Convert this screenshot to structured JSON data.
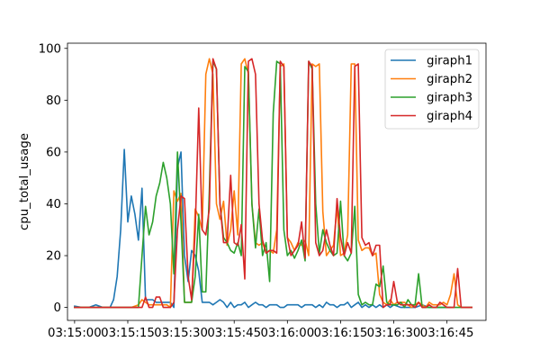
{
  "chart_data": {
    "type": "line",
    "xlabel": "",
    "ylabel": "cpu_total_usage",
    "x_unit": "seconds_after_03:15:00",
    "xlim": [
      -2,
      116
    ],
    "ylim": [
      -5,
      102
    ],
    "grid": false,
    "legend_position": "top-right",
    "x_ticks": [
      {
        "value": 0,
        "label": "03:15:00"
      },
      {
        "value": 15,
        "label": "03:15:15"
      },
      {
        "value": 30,
        "label": "03:15:30"
      },
      {
        "value": 45,
        "label": "03:15:45"
      },
      {
        "value": 60,
        "label": "03:16:00"
      },
      {
        "value": 75,
        "label": "03:16:15"
      },
      {
        "value": 90,
        "label": "03:16:30"
      },
      {
        "value": 105,
        "label": "03:16:45"
      }
    ],
    "y_ticks": [
      0,
      20,
      40,
      60,
      80,
      100
    ],
    "series": [
      {
        "name": "giraph1",
        "color": "#1f77b4",
        "x": [
          0,
          2,
          4,
          6,
          8,
          10,
          11,
          12,
          13,
          14,
          15,
          16,
          17,
          18,
          19,
          20,
          21,
          22,
          23,
          24,
          25,
          26,
          27,
          28,
          29,
          30,
          31,
          32,
          33,
          34,
          35,
          36,
          37,
          38,
          39,
          40,
          41,
          42,
          43,
          44,
          45,
          46,
          47,
          48,
          49,
          50,
          51,
          52,
          53,
          54,
          55,
          56,
          57,
          58,
          59,
          60,
          61,
          62,
          63,
          64,
          65,
          66,
          67,
          68,
          69,
          70,
          71,
          72,
          73,
          74,
          75,
          76,
          77,
          78,
          79,
          80,
          81,
          82,
          83,
          84,
          85,
          86,
          87,
          88,
          89,
          90,
          92,
          94,
          96,
          98,
          100,
          102,
          104,
          106
        ],
        "y": [
          0.5,
          0,
          0,
          1,
          0,
          0,
          3,
          12,
          30,
          61,
          33,
          43,
          36,
          26,
          46,
          3,
          3,
          3,
          2,
          2,
          2,
          2,
          2,
          0,
          54,
          60,
          20,
          10,
          22,
          20,
          14,
          2,
          2,
          2,
          1,
          2,
          3,
          2,
          0,
          2,
          0,
          1,
          1,
          2,
          0,
          1,
          2,
          1,
          1,
          0,
          1,
          1,
          1,
          0,
          0,
          1,
          1,
          1,
          1,
          0,
          1,
          1,
          1,
          0,
          1,
          0,
          2,
          1,
          1,
          0,
          1,
          1,
          2,
          0,
          1,
          2,
          0,
          1,
          0,
          1,
          0,
          1,
          0,
          1,
          0,
          1,
          0,
          0,
          0,
          1,
          0,
          0,
          0,
          0
        ]
      },
      {
        "name": "giraph2",
        "color": "#ff7f0e",
        "x": [
          0,
          2,
          4,
          6,
          8,
          10,
          12,
          14,
          16,
          18,
          19,
          20,
          21,
          22,
          23,
          24,
          25,
          26,
          27,
          28,
          29,
          30,
          31,
          32,
          33,
          34,
          35,
          36,
          37,
          38,
          39,
          40,
          41,
          42,
          43,
          44,
          45,
          46,
          47,
          48,
          49,
          50,
          51,
          52,
          53,
          54,
          55,
          56,
          57,
          58,
          59,
          60,
          61,
          62,
          63,
          64,
          65,
          66,
          67,
          68,
          69,
          70,
          71,
          72,
          73,
          74,
          75,
          76,
          77,
          78,
          79,
          80,
          81,
          82,
          83,
          84,
          85,
          86,
          87,
          88,
          89,
          90,
          91,
          92,
          93,
          94,
          95,
          96,
          97,
          98,
          99,
          100,
          101,
          102,
          103,
          104,
          105,
          106,
          107,
          108,
          109,
          110,
          111,
          112
        ],
        "y": [
          0,
          0,
          0,
          0,
          0,
          0,
          0,
          0,
          0,
          1,
          3,
          2,
          1,
          1,
          1,
          1,
          1,
          1,
          0,
          45,
          41,
          44,
          2,
          2,
          2,
          38,
          35,
          30,
          90,
          96,
          90,
          40,
          34,
          41,
          24,
          30,
          45,
          28,
          94,
          96,
          90,
          40,
          25,
          24,
          25,
          21,
          22,
          21,
          30,
          93,
          94,
          27,
          25,
          22,
          25,
          24,
          26,
          20,
          94,
          93,
          94,
          37,
          20,
          22,
          24,
          39,
          20,
          21,
          28,
          94,
          94,
          26,
          22,
          23,
          23,
          20,
          21,
          5,
          2,
          1,
          3,
          1,
          2,
          2,
          2,
          1,
          0,
          1,
          2,
          1,
          0,
          2,
          1,
          1,
          1,
          2,
          1,
          5,
          13,
          1,
          0,
          0,
          0,
          0
        ]
      },
      {
        "name": "giraph3",
        "color": "#2ca02c",
        "x": [
          0,
          2,
          4,
          6,
          8,
          10,
          12,
          14,
          16,
          18,
          19,
          20,
          21,
          22,
          23,
          24,
          25,
          26,
          27,
          28,
          29,
          30,
          31,
          32,
          33,
          34,
          35,
          36,
          37,
          38,
          39,
          40,
          41,
          42,
          43,
          44,
          45,
          46,
          47,
          48,
          49,
          50,
          51,
          52,
          53,
          54,
          55,
          56,
          57,
          58,
          59,
          60,
          61,
          62,
          63,
          64,
          65,
          66,
          67,
          68,
          69,
          70,
          71,
          72,
          73,
          74,
          75,
          76,
          77,
          78,
          79,
          80,
          81,
          82,
          83,
          84,
          85,
          86,
          87,
          88,
          89,
          90,
          91,
          92,
          93,
          94,
          95,
          96,
          97,
          98,
          99,
          100,
          101,
          102,
          103,
          104,
          105,
          106,
          107,
          108,
          109,
          110,
          111,
          112
        ],
        "y": [
          0,
          0,
          0,
          0,
          0,
          0,
          0,
          0,
          0,
          0,
          20,
          39,
          28,
          33,
          43,
          48,
          56,
          50,
          40,
          13,
          60,
          33,
          2,
          2,
          2,
          12,
          36,
          6,
          6,
          45,
          95,
          92,
          40,
          27,
          25,
          22,
          21,
          25,
          20,
          93,
          91,
          40,
          23,
          38,
          20,
          25,
          10,
          75,
          95,
          94,
          30,
          20,
          22,
          19,
          22,
          26,
          18,
          95,
          92,
          40,
          21,
          30,
          25,
          22,
          20,
          21,
          41,
          20,
          18,
          21,
          39,
          5,
          1,
          2,
          1,
          1,
          9,
          8,
          16,
          2,
          1,
          1,
          1,
          2,
          0,
          3,
          1,
          1,
          13,
          0,
          0,
          0,
          0,
          0,
          0,
          0,
          0,
          0,
          0,
          0,
          0,
          0,
          0,
          0
        ]
      },
      {
        "name": "giraph4",
        "color": "#d62728",
        "x": [
          0,
          2,
          4,
          6,
          8,
          10,
          12,
          14,
          16,
          18,
          19,
          20,
          21,
          22,
          23,
          24,
          25,
          26,
          27,
          28,
          29,
          30,
          31,
          32,
          33,
          34,
          35,
          36,
          37,
          38,
          39,
          40,
          41,
          42,
          43,
          44,
          45,
          46,
          47,
          48,
          49,
          50,
          51,
          52,
          53,
          54,
          55,
          56,
          57,
          58,
          59,
          60,
          61,
          62,
          63,
          64,
          65,
          66,
          67,
          68,
          69,
          70,
          71,
          72,
          73,
          74,
          75,
          76,
          77,
          78,
          79,
          80,
          81,
          82,
          83,
          84,
          85,
          86,
          87,
          88,
          89,
          90,
          91,
          92,
          93,
          94,
          95,
          96,
          97,
          98,
          99,
          100,
          101,
          102,
          103,
          104,
          105,
          106,
          107,
          108,
          109,
          110,
          111,
          112
        ],
        "y": [
          0,
          0,
          0,
          0,
          0,
          0,
          0,
          0,
          0,
          0,
          0,
          4,
          0,
          0,
          4,
          4,
          0,
          0,
          0,
          2,
          30,
          43,
          42,
          12,
          3,
          30,
          77,
          30,
          28,
          38,
          96,
          92,
          40,
          25,
          25,
          51,
          25,
          24,
          32,
          11,
          95,
          96,
          90,
          40,
          26,
          21,
          22,
          22,
          21,
          95,
          93,
          27,
          20,
          22,
          24,
          33,
          19,
          95,
          93,
          25,
          20,
          22,
          30,
          24,
          20,
          42,
          27,
          20,
          25,
          21,
          93,
          94,
          27,
          24,
          25,
          20,
          24,
          24,
          0,
          1,
          1,
          10,
          2,
          1,
          1,
          1,
          1,
          0,
          2,
          0,
          0,
          1,
          0,
          0,
          2,
          1,
          0,
          0,
          0,
          15,
          0,
          0,
          0,
          0
        ]
      }
    ]
  }
}
